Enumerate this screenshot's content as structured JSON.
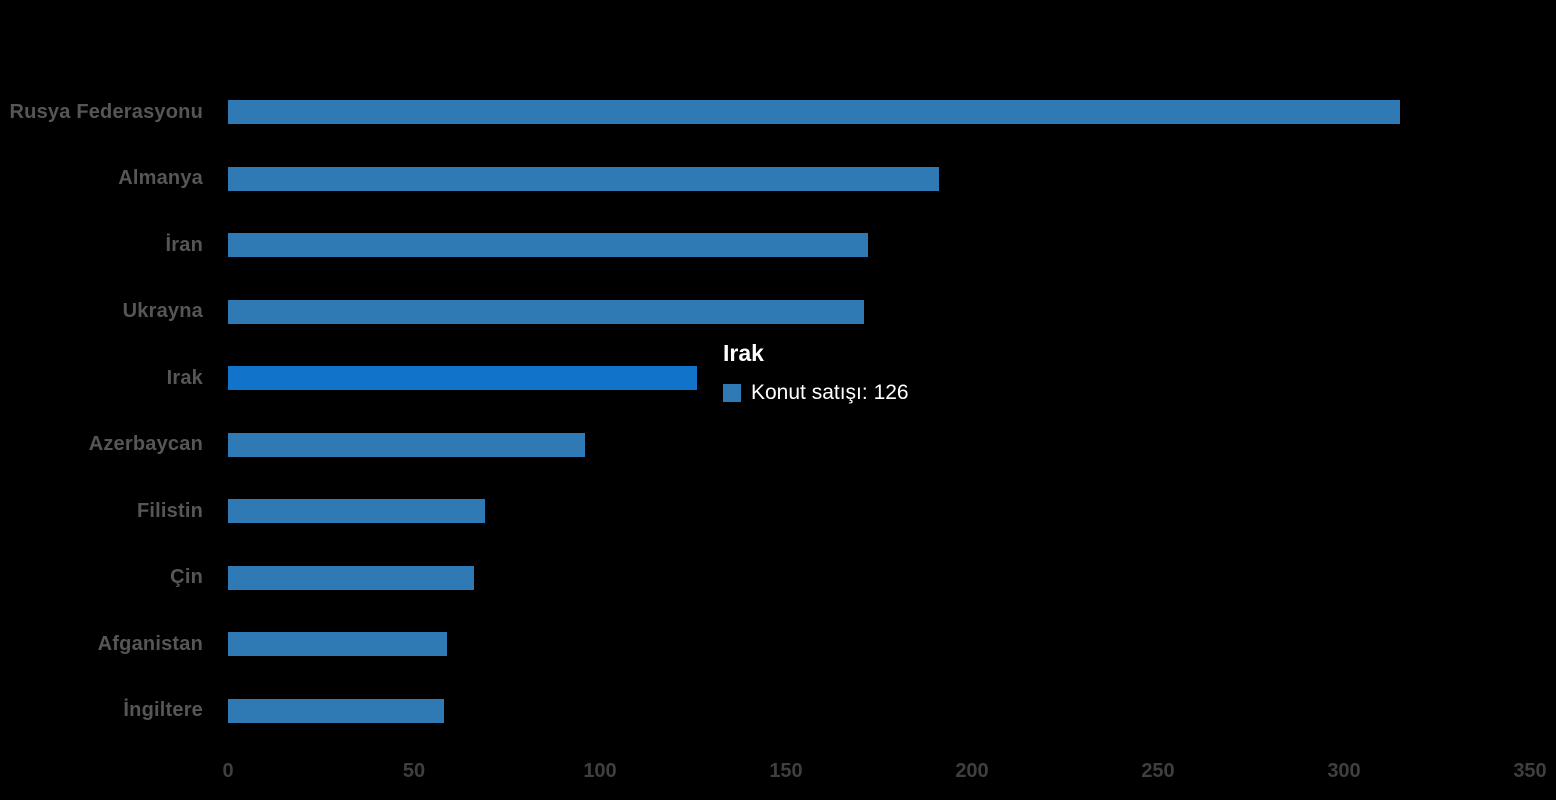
{
  "chart_data": {
    "type": "bar",
    "orientation": "horizontal",
    "title": "",
    "xlabel": "",
    "ylabel": "",
    "categories": [
      "Rusya Federasyonu",
      "Almanya",
      "İran",
      "Ukrayna",
      "Irak",
      "Azerbaycan",
      "Filistin",
      "Çin",
      "Afganistan",
      "İngiltere"
    ],
    "values": [
      315,
      191,
      172,
      171,
      126,
      96,
      69,
      66,
      59,
      58
    ],
    "series_name": "Konut satışı",
    "xlim": [
      0,
      350
    ],
    "x_ticks": [
      "0",
      "50",
      "100",
      "150",
      "200",
      "250",
      "300",
      "350"
    ],
    "grid": false,
    "legend": "none",
    "highlighted_category": "Irak",
    "colors": {
      "bar": "#2f79b5",
      "bar_highlight": "#1173c9",
      "category_label": "#565656",
      "tick_label": "#3f3f3f",
      "background": "#000000",
      "tooltip_text": "#ffffff"
    }
  },
  "tooltip": {
    "title": "Irak",
    "series_label": "Konut satışı",
    "value": "126",
    "text": "Konut satışı: 126",
    "swatch_color": "#2f79b5"
  }
}
